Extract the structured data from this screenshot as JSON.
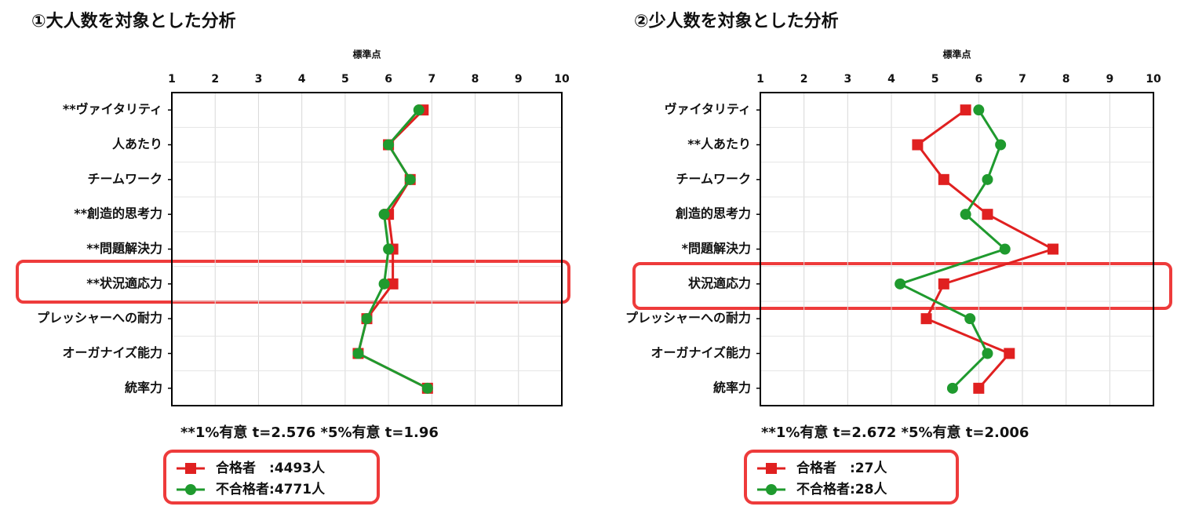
{
  "chart_data": [
    {
      "type": "line",
      "orientation": "horizontal",
      "title": "①大人数を対象とした分析",
      "x_label": "標準点",
      "categories": [
        "**ヴァイタリティ",
        "人あたり",
        "チームワーク",
        "**創造的思考力",
        "**問題解決力",
        "**状況適応力",
        "プレッシャーへの耐力",
        "オーガナイズ能力",
        "統率力"
      ],
      "series": [
        {
          "name": "合格者　:4493人",
          "color": "#e02020",
          "marker": "square",
          "values": [
            6.8,
            6.0,
            6.5,
            6.0,
            6.1,
            6.1,
            5.5,
            5.3,
            6.9
          ]
        },
        {
          "name": "不合格者:4771人",
          "color": "#1f9a2e",
          "marker": "circle",
          "values": [
            6.7,
            6.0,
            6.5,
            5.9,
            6.0,
            5.9,
            5.5,
            5.3,
            6.9
          ]
        }
      ],
      "xlim": [
        1,
        10
      ],
      "xticks": [
        1,
        2,
        3,
        4,
        5,
        6,
        7,
        8,
        9,
        10
      ],
      "grid": true,
      "note": "**1%有意 t=2.576 *5%有意 t=1.96"
    },
    {
      "type": "line",
      "orientation": "horizontal",
      "title": "②少人数を対象とした分析",
      "x_label": "標準点",
      "categories": [
        "ヴァイタリティ",
        "**人あたり",
        "チームワーク",
        "創造的思考力",
        "*問題解決力",
        "状況適応力",
        "プレッシャーへの耐力",
        "オーガナイズ能力",
        "統率力"
      ],
      "series": [
        {
          "name": "合格者　:27人",
          "color": "#e02020",
          "marker": "square",
          "values": [
            5.7,
            4.6,
            5.2,
            6.2,
            7.7,
            5.2,
            4.8,
            6.7,
            6.0
          ]
        },
        {
          "name": "不合格者:28人",
          "color": "#1f9a2e",
          "marker": "circle",
          "values": [
            6.0,
            6.5,
            6.2,
            5.7,
            6.6,
            4.2,
            5.8,
            6.2,
            5.4
          ]
        }
      ],
      "xlim": [
        1,
        10
      ],
      "xticks": [
        1,
        2,
        3,
        4,
        5,
        6,
        7,
        8,
        9,
        10
      ],
      "grid": true,
      "note": "**1%有意 t=2.672 *5%有意 t=2.006"
    }
  ]
}
